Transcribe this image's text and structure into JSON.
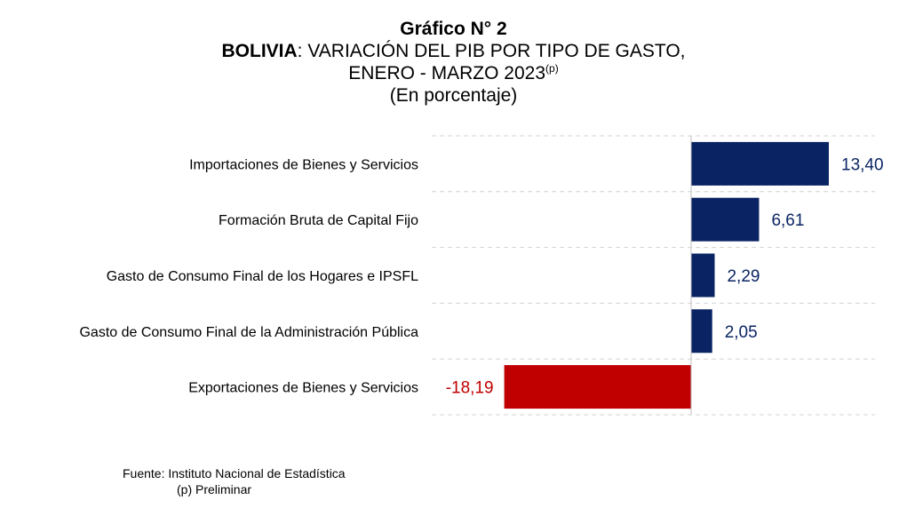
{
  "header": {
    "chart_number": "Gráfico N° 2",
    "country": "BOLIVIA",
    "title_rest": ": VARIACIÓN DEL PIB POR TIPO DE GASTO,",
    "period": "ENERO - MARZO 2023",
    "period_note": "(p)",
    "units": "(En porcentaje)"
  },
  "footer": {
    "source": "Fuente: Instituto Nacional de Estadística",
    "note": "(p) Preliminar"
  },
  "colors": {
    "positive": "#0a2463",
    "negative": "#c00000",
    "gridline": "#d4d4d4",
    "axis": "#bfbfbf"
  },
  "chart_data": {
    "type": "bar",
    "orientation": "horizontal",
    "categories": [
      "Importaciones de Bienes y Servicios",
      "Formación Bruta de Capital Fijo",
      "Gasto de Consumo Final de los Hogares e  IPSFL",
      "Gasto de Consumo Final de la Administración Pública",
      "Exportaciones de Bienes y Servicios"
    ],
    "values": [
      13.4,
      6.61,
      2.29,
      2.05,
      -18.19
    ],
    "value_labels": [
      "13,40",
      "6,61",
      "2,29",
      "2,05",
      "-18,19"
    ],
    "xlim": [
      -25,
      20
    ],
    "grid": true,
    "legend": "none"
  }
}
